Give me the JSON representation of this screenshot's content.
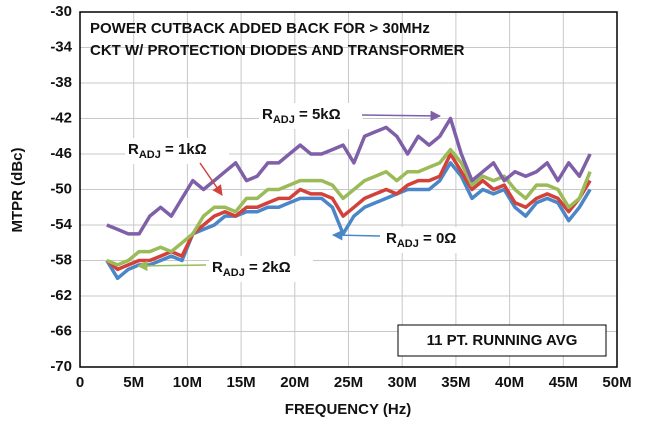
{
  "chart_data": {
    "type": "line",
    "annotations": [
      "POWER CUTBACK ADDED BACK FOR > 30MHz",
      "CKT W/ PROTECTION DIODES AND TRANSFORMER",
      "11 PT. RUNNING AVG"
    ],
    "x_label": "FREQUENCY (Hz)",
    "y_label": "MTPR (dBc)",
    "xlim": [
      0,
      50000000
    ],
    "xticks": [
      0,
      {
        "value": 5000000,
        "label": "5M"
      },
      {
        "value": 10000000,
        "label": "10M"
      },
      {
        "value": 15000000,
        "label": "15M"
      },
      {
        "value": 20000000,
        "label": "20M"
      },
      {
        "value": 25000000,
        "label": "25M"
      },
      {
        "value": 30000000,
        "label": "30M"
      },
      {
        "value": 35000000,
        "label": "35M"
      },
      {
        "value": 40000000,
        "label": "40M"
      },
      {
        "value": 45000000,
        "label": "45M"
      },
      {
        "value": 50000000,
        "label": "50M"
      }
    ],
    "ylim": [
      -70,
      -30
    ],
    "yticks": [
      -30,
      -34,
      -38,
      -42,
      -46,
      -50,
      -54,
      -58,
      -62,
      -66,
      -70
    ],
    "grid": true,
    "x": [
      2500000,
      3500000,
      4500000,
      5500000,
      6500000,
      7500000,
      8500000,
      9500000,
      10500000,
      11500000,
      12500000,
      13500000,
      14500000,
      15500000,
      16500000,
      17500000,
      18500000,
      19500000,
      20500000,
      21500000,
      22500000,
      23500000,
      24500000,
      25500000,
      26500000,
      27500000,
      28500000,
      29500000,
      30500000,
      31500000,
      32500000,
      33500000,
      34500000,
      35500000,
      36500000,
      37500000,
      38500000,
      39500000,
      40500000,
      41500000,
      42500000,
      43500000,
      44500000,
      45500000,
      46500000,
      47500000
    ],
    "series": [
      {
        "name": "RADJ = 0Ω",
        "color": "#4a86c8",
        "values": [
          -58,
          -60,
          -59,
          -58.5,
          -58.5,
          -58,
          -57.5,
          -58,
          -55,
          -54.5,
          -54,
          -53,
          -53,
          -52.5,
          -52.5,
          -52,
          -52,
          -51.5,
          -51,
          -51,
          -51,
          -52,
          -55,
          -53,
          -52,
          -51.5,
          -51,
          -50.5,
          -50,
          -50,
          -50,
          -49,
          -47,
          -48.5,
          -51,
          -50,
          -50.5,
          -50,
          -52,
          -53,
          -51.5,
          -51,
          -51.5,
          -53.5,
          -52,
          -50
        ]
      },
      {
        "name": "RADJ = 1kΩ",
        "color": "#d2413a",
        "values": [
          -58,
          -59,
          -58.5,
          -58,
          -58,
          -57.5,
          -57,
          -57.5,
          -55,
          -54,
          -53,
          -52.5,
          -53,
          -52,
          -52,
          -51.5,
          -51,
          -51,
          -50,
          -50.5,
          -50.5,
          -51,
          -53,
          -52,
          -51,
          -50.5,
          -50,
          -50.5,
          -49.5,
          -49,
          -49,
          -48.5,
          -46,
          -48,
          -50,
          -49,
          -50,
          -49.5,
          -51.5,
          -52,
          -51,
          -50.5,
          -51,
          -52.5,
          -51,
          -49
        ]
      },
      {
        "name": "RADJ = 2kΩ",
        "color": "#9bbb59",
        "values": [
          -58,
          -58.5,
          -58,
          -57,
          -57,
          -56.5,
          -57,
          -56,
          -55,
          -53,
          -52,
          -52,
          -52.5,
          -51,
          -51,
          -50,
          -50,
          -49.5,
          -49,
          -49,
          -49,
          -49.5,
          -51,
          -50,
          -49,
          -48.5,
          -48,
          -49,
          -48,
          -48,
          -47.5,
          -47,
          -45.5,
          -47,
          -49.5,
          -48.5,
          -49,
          -48.5,
          -50,
          -51,
          -49.5,
          -49.5,
          -50,
          -52,
          -51,
          -48
        ]
      },
      {
        "name": "RADJ = 5kΩ",
        "color": "#7f5fa8",
        "values": [
          -54,
          -54.5,
          -55,
          -55,
          -53,
          -52,
          -53,
          -51,
          -49,
          -50,
          -49,
          -48,
          -47,
          -49,
          -48.5,
          -47,
          -47,
          -46,
          -45,
          -46,
          -46,
          -45.5,
          -45,
          -47,
          -44,
          -43.5,
          -43,
          -44,
          -46,
          -44,
          -45,
          -44,
          -42,
          -46,
          -49,
          -48,
          -47,
          -49,
          -48,
          -48.5,
          -48,
          -47,
          -49,
          -47,
          -48.5,
          -46
        ]
      }
    ]
  }
}
